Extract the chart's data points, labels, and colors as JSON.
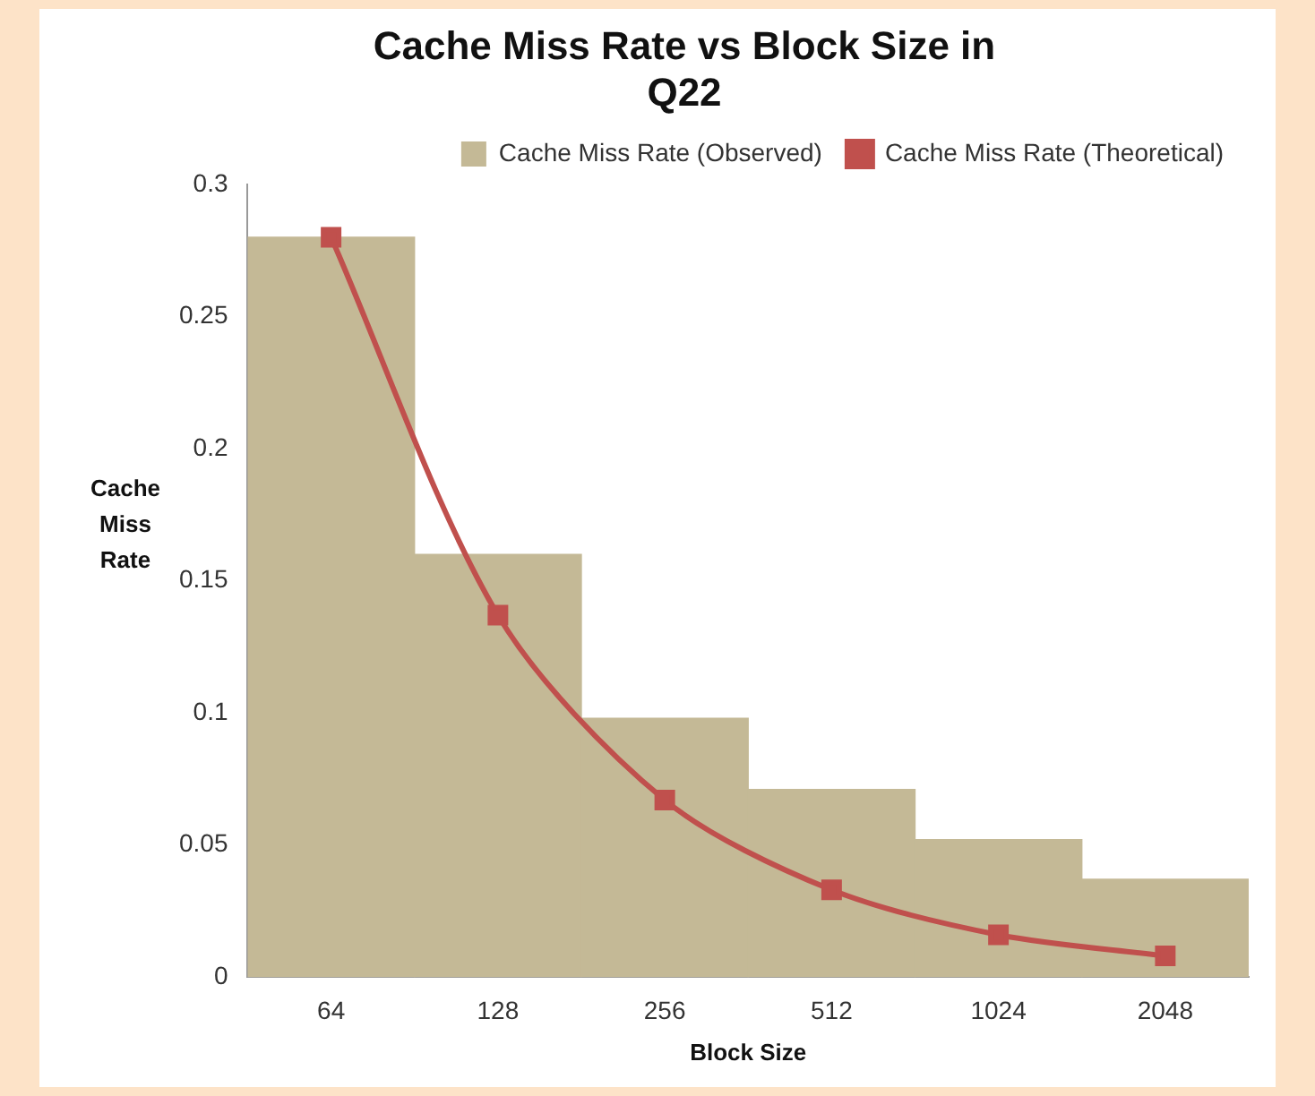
{
  "chart_data": {
    "type": "bar",
    "title": "Cache Miss Rate vs Block Size in Q22",
    "xlabel": "Block Size",
    "ylabel": "Cache Miss Rate",
    "categories": [
      "64",
      "128",
      "256",
      "512",
      "1024",
      "2048"
    ],
    "series": [
      {
        "name": "Cache Miss Rate (Observed)",
        "color": "#c4b996",
        "values": [
          0.28,
          0.16,
          0.098,
          0.071,
          0.052,
          0.037
        ]
      },
      {
        "name": "Cache Miss Rate (Theoretical)",
        "type": "line",
        "color": "#c0504d",
        "values": [
          0.28,
          0.137,
          0.067,
          0.033,
          0.016,
          0.008
        ]
      }
    ],
    "ylim": [
      0,
      0.3
    ],
    "yticks": [
      0,
      0.05,
      0.1,
      0.15,
      0.2,
      0.25,
      0.3
    ],
    "legend": "top right",
    "marker": "square",
    "line_style": "solid"
  }
}
